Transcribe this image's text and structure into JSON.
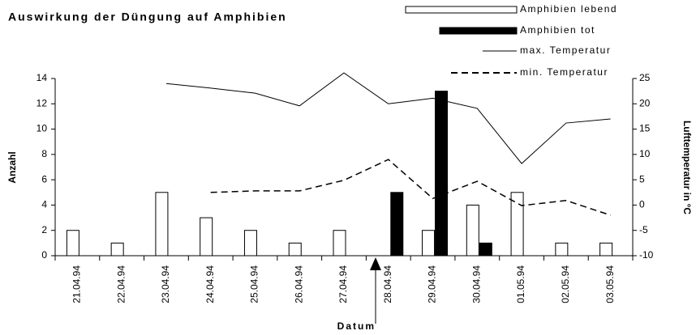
{
  "chart_data": {
    "type": "bar",
    "title": "Auswirkung der Düngung auf Amphibien",
    "x_label": "Datum",
    "y_label": "Anzahl",
    "y2_label": "Lufttemperatur in °C",
    "categories": [
      "21.04.94",
      "22.04.94",
      "23.04.94",
      "24.04.94",
      "25.04.94",
      "26.04.94",
      "27.04.94",
      "28.04.94",
      "29.04.94",
      "30.04.94",
      "01.05.94",
      "02.05.94",
      "03.05.94"
    ],
    "ylim": [
      0,
      14
    ],
    "yticks": [
      0,
      2,
      4,
      6,
      8,
      10,
      12,
      14
    ],
    "y2lim": [
      -10,
      25
    ],
    "y2ticks": [
      -10,
      -5,
      0,
      5,
      10,
      15,
      20,
      25
    ],
    "series": [
      {
        "name": "Amphibien lebend",
        "type": "bar",
        "color": "#ffffff",
        "values": [
          2,
          1,
          5,
          3,
          2,
          1,
          2,
          0,
          2,
          4,
          5,
          1,
          1
        ]
      },
      {
        "name": "Amphibien tot",
        "type": "bar",
        "color": "#000000",
        "values": [
          0,
          0,
          0,
          0,
          0,
          0,
          0,
          5,
          13,
          1,
          0,
          0,
          0
        ]
      },
      {
        "name": "max. Temperatur",
        "type": "line",
        "axis": "y2",
        "color": "#000000",
        "values": [
          null,
          null,
          24,
          23.1,
          22.1,
          19.6,
          26.1,
          20,
          21.1,
          19.1,
          8.2,
          16.2,
          17
        ]
      },
      {
        "name": "min. Temperatur",
        "type": "line",
        "axis": "y2",
        "dashed": true,
        "color": "#000000",
        "values": [
          null,
          null,
          null,
          2.5,
          2.8,
          2.8,
          4.9,
          9,
          1.3,
          4.7,
          -0.1,
          0.9,
          -2
        ]
      }
    ]
  }
}
